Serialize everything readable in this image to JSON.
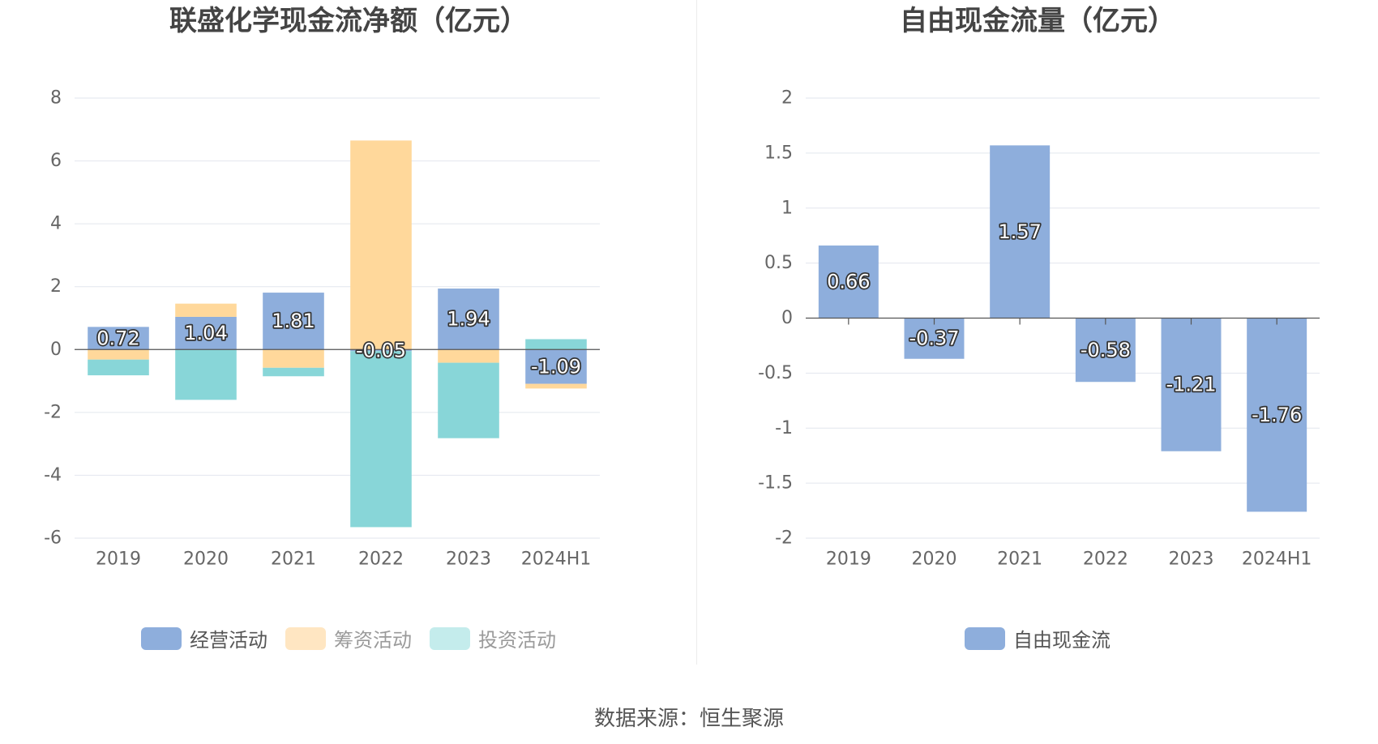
{
  "chart_data": [
    {
      "type": "bar",
      "stacked": true,
      "title": "联盛化学现金流净额（亿元）",
      "categories": [
        "2019",
        "2020",
        "2021",
        "2022",
        "2023",
        "2024H1"
      ],
      "series": [
        {
          "name": "经营活动",
          "color": "#8eaedc",
          "values": [
            0.72,
            1.04,
            1.81,
            -0.05,
            1.94,
            -1.09
          ]
        },
        {
          "name": "筹资活动",
          "color": "#ffd89b",
          "values": [
            -0.32,
            0.42,
            -0.58,
            6.65,
            -0.42,
            -0.15
          ]
        },
        {
          "name": "投资活动",
          "color": "#88d6d8",
          "values": [
            -0.5,
            -1.6,
            -0.27,
            -5.6,
            -2.4,
            0.33
          ]
        }
      ],
      "data_labels": [
        "0.72",
        "1.04",
        "1.81",
        "-0.05",
        "1.94",
        "-1.09"
      ],
      "ylim": [
        -6,
        8
      ],
      "yticks": [
        "8",
        "6",
        "4",
        "2",
        "0",
        "-2",
        "-4",
        "-6"
      ],
      "grid": true,
      "legend_position": "bottom"
    },
    {
      "type": "bar",
      "title": "自由现金流量（亿元）",
      "categories": [
        "2019",
        "2020",
        "2021",
        "2022",
        "2023",
        "2024H1"
      ],
      "series": [
        {
          "name": "自由现金流",
          "color": "#8eaedc",
          "values": [
            0.66,
            -0.37,
            1.57,
            -0.58,
            -1.21,
            -1.76
          ]
        }
      ],
      "data_labels": [
        "0.66",
        "-0.37",
        "1.57",
        "-0.58",
        "-1.21",
        "-1.76"
      ],
      "ylim": [
        -2,
        2
      ],
      "yticks": [
        "2",
        "1.5",
        "1",
        "0.5",
        "0",
        "-0.5",
        "-1",
        "-1.5",
        "-2"
      ],
      "grid": true,
      "legend_position": "bottom"
    }
  ],
  "legend_colors": {
    "经营活动": "#8eaedc",
    "筹资活动": "#ffe6c2",
    "投资活动": "#c4ecec",
    "自由现金流": "#8eaedc"
  },
  "source": "数据来源：恒生聚源"
}
